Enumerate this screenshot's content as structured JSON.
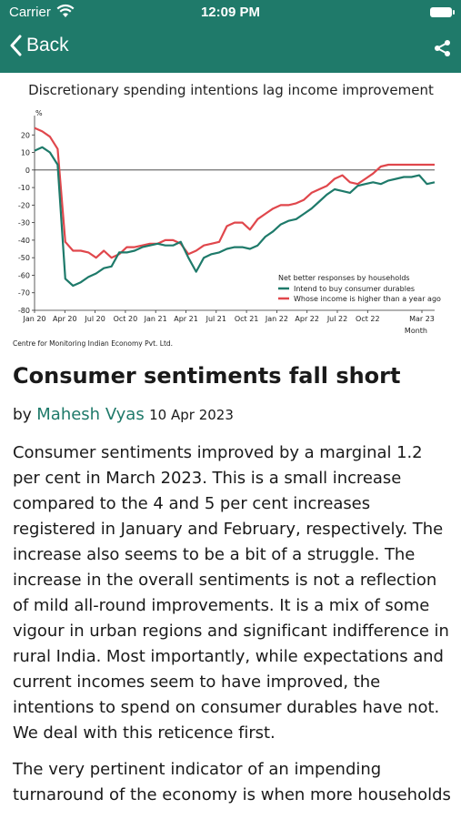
{
  "status_bar": {
    "carrier": "Carrier",
    "time": "12:09 PM"
  },
  "nav": {
    "back_label": "Back"
  },
  "chart_data": {
    "type": "line",
    "title": "Discretionary spending intentions lag income improvement",
    "ylabel": "%",
    "xlabel": "Month",
    "ylim": [
      -80,
      30
    ],
    "yticks": [
      -80,
      -70,
      -60,
      -50,
      -40,
      -30,
      -20,
      -10,
      0,
      10,
      20
    ],
    "xtick_labels": [
      "Jan 20",
      "Apr 20",
      "Jul 20",
      "Oct 20",
      "Jan 21",
      "Apr 21",
      "Jul 21",
      "Oct 21",
      "Jan 22",
      "Apr 22",
      "Jul 22",
      "Oct 22",
      "Mar 23"
    ],
    "legend_title": "Net better responses by households",
    "legend_position": "bottom-right",
    "source": "Centre for Monitoring Indian Economy Pvt. Ltd.",
    "colors": {
      "consumer_durables": "#1e7a6a",
      "income": "#e0474c"
    },
    "series": [
      {
        "name": "Intend to buy consumer durables",
        "values": [
          11,
          13,
          10,
          3,
          -62,
          -66,
          -64,
          -61,
          -59,
          -56,
          -55,
          -47,
          -47,
          -46,
          -44,
          -43,
          -42,
          -43,
          -43,
          -41,
          -50,
          -58,
          -50,
          -48,
          -47,
          -45,
          -44,
          -44,
          -45,
          -43,
          -38,
          -35,
          -31,
          -29,
          -28,
          -25,
          -22,
          -18,
          -14,
          -11,
          -12,
          -13,
          -9,
          -8,
          -7,
          -8,
          -6,
          -5,
          -4,
          -4,
          -3,
          -8,
          -7
        ]
      },
      {
        "name": "Whose income is higher than a year ago",
        "values": [
          24,
          22,
          19,
          12,
          -41,
          -46,
          -46,
          -47,
          -50,
          -46,
          -50,
          -48,
          -44,
          -44,
          -43,
          -42,
          -42,
          -40,
          -40,
          -42,
          -48,
          -46,
          -43,
          -42,
          -41,
          -32,
          -30,
          -30,
          -34,
          -28,
          -25,
          -22,
          -20,
          -20,
          -19,
          -17,
          -13,
          -11,
          -9,
          -5,
          -3,
          -7,
          -8,
          -5,
          -2,
          2,
          3,
          3,
          3,
          3,
          3,
          3,
          3
        ]
      }
    ]
  },
  "article": {
    "title": "Consumer sentiments fall short",
    "by": "by",
    "author": "Mahesh Vyas",
    "date": "10 Apr 2023",
    "paragraph1": "Consumer sentiments improved by a marginal 1.2 per cent in March 2023. This is a small increase compared to the 4 and 5 per cent increases registered in January and February, respectively. The increase also seems to be a bit of a struggle. The increase in the overall sentiments is not a reflection of mild all-round improvements. It is a mix of some vigour in urban regions and significant indifference in rural India. Most importantly, while expectations and current incomes seem to have improved, the intentions to spend on consumer durables have not. We deal with this reticence first.",
    "paragraph2": "The very pertinent indicator of an impending turnaround of the economy is when more households"
  }
}
